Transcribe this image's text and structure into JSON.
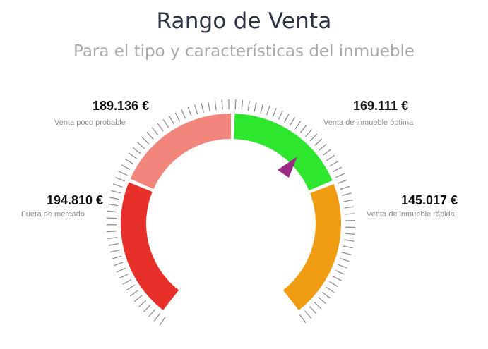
{
  "header": {
    "title": "Rango de Venta",
    "subtitle": "Para el tipo y características del inmueble"
  },
  "chart_data": {
    "type": "gauge",
    "segments": [
      {
        "value": "194.810 €",
        "label": "Fuera de mercado",
        "color": "#e8302b"
      },
      {
        "value": "189.136 €",
        "label": "Venta poco probable",
        "color": "#f3867c"
      },
      {
        "value": "169.111 €",
        "label": "Venta de inmueble óptima",
        "color": "#2ee62e"
      },
      {
        "value": "145.017 €",
        "label": "Venta de inmueble rápida",
        "color": "#f09d13"
      }
    ],
    "pointer": {
      "color": "#9b2a84",
      "segment": "Venta de inmueble óptima"
    }
  }
}
